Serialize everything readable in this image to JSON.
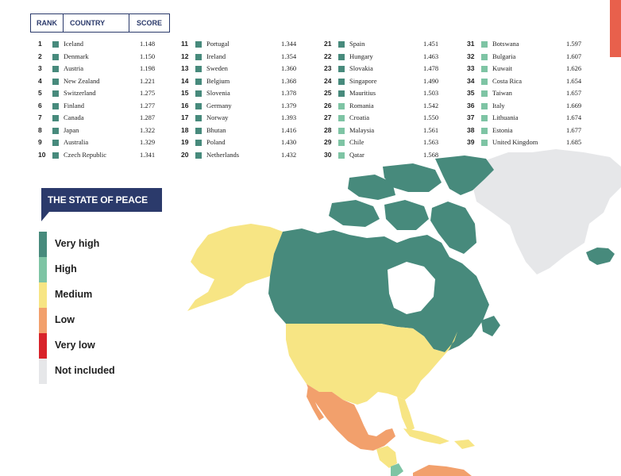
{
  "header": {
    "rank": "RANK",
    "country": "COUNTRY",
    "score": "SCORE"
  },
  "rankings": [
    {
      "rank": "1",
      "country": "Iceland",
      "score": "1.148",
      "level": "very_high"
    },
    {
      "rank": "2",
      "country": "Denmark",
      "score": "1.150",
      "level": "very_high"
    },
    {
      "rank": "3",
      "country": "Austria",
      "score": "1.198",
      "level": "very_high"
    },
    {
      "rank": "4",
      "country": "New Zealand",
      "score": "1.221",
      "level": "very_high"
    },
    {
      "rank": "5",
      "country": "Switzerland",
      "score": "1.275",
      "level": "very_high"
    },
    {
      "rank": "6",
      "country": "Finland",
      "score": "1.277",
      "level": "very_high"
    },
    {
      "rank": "7",
      "country": "Canada",
      "score": "1.287",
      "level": "very_high"
    },
    {
      "rank": "8",
      "country": "Japan",
      "score": "1.322",
      "level": "very_high"
    },
    {
      "rank": "9",
      "country": "Australia",
      "score": "1.329",
      "level": "very_high"
    },
    {
      "rank": "10",
      "country": "Czech Republic",
      "score": "1.341",
      "level": "very_high"
    },
    {
      "rank": "11",
      "country": "Portugal",
      "score": "1.344",
      "level": "very_high"
    },
    {
      "rank": "12",
      "country": "Ireland",
      "score": "1.354",
      "level": "very_high"
    },
    {
      "rank": "13",
      "country": "Sweden",
      "score": "1.360",
      "level": "very_high"
    },
    {
      "rank": "14",
      "country": "Belgium",
      "score": "1.368",
      "level": "very_high"
    },
    {
      "rank": "15",
      "country": "Slovenia",
      "score": "1.378",
      "level": "very_high"
    },
    {
      "rank": "16",
      "country": "Germany",
      "score": "1.379",
      "level": "very_high"
    },
    {
      "rank": "17",
      "country": "Norway",
      "score": "1.393",
      "level": "very_high"
    },
    {
      "rank": "18",
      "country": "Bhutan",
      "score": "1.416",
      "level": "very_high"
    },
    {
      "rank": "19",
      "country": "Poland",
      "score": "1.430",
      "level": "very_high"
    },
    {
      "rank": "20",
      "country": "Netherlands",
      "score": "1.432",
      "level": "very_high"
    },
    {
      "rank": "21",
      "country": "Spain",
      "score": "1.451",
      "level": "very_high"
    },
    {
      "rank": "22",
      "country": "Hungary",
      "score": "1.463",
      "level": "very_high"
    },
    {
      "rank": "23",
      "country": "Slovakia",
      "score": "1.478",
      "level": "very_high"
    },
    {
      "rank": "24",
      "country": "Singapore",
      "score": "1.490",
      "level": "very_high"
    },
    {
      "rank": "25",
      "country": "Mauritius",
      "score": "1.503",
      "level": "very_high"
    },
    {
      "rank": "26",
      "country": "Romania",
      "score": "1.542",
      "level": "high"
    },
    {
      "rank": "27",
      "country": "Croatia",
      "score": "1.550",
      "level": "high"
    },
    {
      "rank": "28",
      "country": "Malaysia",
      "score": "1.561",
      "level": "high"
    },
    {
      "rank": "29",
      "country": "Chile",
      "score": "1.563",
      "level": "high"
    },
    {
      "rank": "30",
      "country": "Qatar",
      "score": "1.568",
      "level": "high"
    },
    {
      "rank": "31",
      "country": "Botswana",
      "score": "1.597",
      "level": "high"
    },
    {
      "rank": "32",
      "country": "Bulgaria",
      "score": "1.607",
      "level": "high"
    },
    {
      "rank": "33",
      "country": "Kuwait",
      "score": "1.626",
      "level": "high"
    },
    {
      "rank": "34",
      "country": "Costa Rica",
      "score": "1.654",
      "level": "high"
    },
    {
      "rank": "35",
      "country": "Taiwan",
      "score": "1.657",
      "level": "high"
    },
    {
      "rank": "36",
      "country": "Italy",
      "score": "1.669",
      "level": "high"
    },
    {
      "rank": "37",
      "country": "Lithuania",
      "score": "1.674",
      "level": "high"
    },
    {
      "rank": "38",
      "country": "Estonia",
      "score": "1.677",
      "level": "high"
    },
    {
      "rank": "39",
      "country": "United Kingdom",
      "score": "1.685",
      "level": "high"
    }
  ],
  "legend": {
    "title": "THE STATE OF PEACE",
    "items": [
      {
        "label": "Very high",
        "color": "#478a7c"
      },
      {
        "label": "High",
        "color": "#7ec4a4"
      },
      {
        "label": "Medium",
        "color": "#f7e584"
      },
      {
        "label": "Low",
        "color": "#f2a06c"
      },
      {
        "label": "Very low",
        "color": "#d8232a"
      },
      {
        "label": "Not included",
        "color": "#e6e7e9"
      }
    ]
  },
  "map": {
    "regions": [
      {
        "name": "Canada",
        "level": "very_high"
      },
      {
        "name": "Alaska",
        "level": "medium"
      },
      {
        "name": "United States",
        "level": "medium"
      },
      {
        "name": "Mexico",
        "level": "low"
      },
      {
        "name": "Greenland",
        "level": "not_included"
      },
      {
        "name": "Iceland",
        "level": "very_high"
      },
      {
        "name": "Cuba",
        "level": "medium"
      },
      {
        "name": "Central America",
        "level": "low"
      }
    ]
  },
  "colors": {
    "very_high": "#478a7c",
    "high": "#7ec4a4",
    "medium": "#f7e584",
    "low": "#f2a06c",
    "very_low": "#d8232a",
    "not_included": "#e6e7e9",
    "navy": "#2b3a6b",
    "accent": "#e8604c"
  }
}
